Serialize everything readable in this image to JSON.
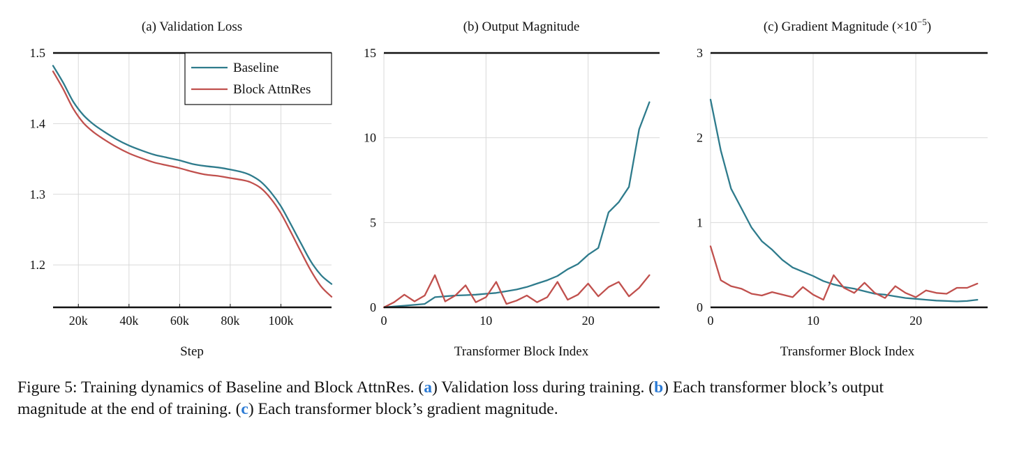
{
  "charts": [
    {
      "id": "loss",
      "title": "(a) Validation Loss",
      "xlabel": "Step",
      "colors": {
        "Baseline": "#2e7b8c",
        "Block AttnRes": "#c0504d"
      },
      "legend": {
        "placement": "top-right",
        "entries": [
          "Baseline",
          "Block AttnRes"
        ]
      }
    },
    {
      "id": "output",
      "title": "(b) Output Magnitude",
      "xlabel": "Transformer Block Index"
    },
    {
      "id": "grad",
      "title": "(c) Gradient Magnitude (×10",
      "title_sup": "−5",
      "title_end": ")",
      "xlabel": "Transformer Block Index"
    }
  ],
  "chart_data": [
    {
      "type": "line",
      "title": "(a) Validation Loss",
      "xlabel": "Step",
      "ylabel": "",
      "xlim": [
        10000,
        120000
      ],
      "ylim": [
        1.14,
        1.5
      ],
      "xticks": [
        20000,
        40000,
        60000,
        80000,
        100000
      ],
      "xtick_labels": [
        "20k",
        "40k",
        "60k",
        "80k",
        "100k"
      ],
      "yticks": [
        1.2,
        1.3,
        1.4,
        1.5
      ],
      "ytick_labels": [
        "1.2",
        "1.3",
        "1.4",
        "1.5"
      ],
      "grid": true,
      "legend": "top-right",
      "x": [
        10000,
        14000,
        18000,
        22000,
        26000,
        30000,
        35000,
        40000,
        45000,
        50000,
        55000,
        60000,
        65000,
        70000,
        75000,
        80000,
        85000,
        88000,
        92000,
        96000,
        100000,
        104000,
        108000,
        112000,
        116000,
        120000
      ],
      "series": [
        {
          "name": "Baseline",
          "color": "#2e7b8c",
          "values": [
            1.482,
            1.458,
            1.431,
            1.412,
            1.399,
            1.389,
            1.378,
            1.369,
            1.362,
            1.356,
            1.352,
            1.348,
            1.343,
            1.34,
            1.338,
            1.335,
            1.331,
            1.327,
            1.318,
            1.303,
            1.283,
            1.257,
            1.23,
            1.204,
            1.185,
            1.173
          ]
        },
        {
          "name": "Block AttnRes",
          "color": "#c0504d",
          "values": [
            1.474,
            1.449,
            1.421,
            1.401,
            1.388,
            1.378,
            1.367,
            1.358,
            1.351,
            1.345,
            1.341,
            1.337,
            1.332,
            1.328,
            1.326,
            1.323,
            1.32,
            1.317,
            1.309,
            1.294,
            1.273,
            1.246,
            1.218,
            1.191,
            1.169,
            1.155
          ]
        }
      ]
    },
    {
      "type": "line",
      "title": "(b) Output Magnitude",
      "xlabel": "Transformer Block Index",
      "ylabel": "",
      "xlim": [
        0,
        27
      ],
      "ylim": [
        0,
        15
      ],
      "xticks": [
        0,
        10,
        20
      ],
      "yticks": [
        0,
        5,
        10,
        15
      ],
      "grid": true,
      "x": [
        0,
        1,
        2,
        3,
        4,
        5,
        6,
        7,
        8,
        9,
        10,
        11,
        12,
        13,
        14,
        15,
        16,
        17,
        18,
        19,
        20,
        21,
        22,
        23,
        24,
        25,
        26
      ],
      "series": [
        {
          "name": "Baseline",
          "color": "#2e7b8c",
          "values": [
            0.0,
            0.05,
            0.1,
            0.15,
            0.2,
            0.6,
            0.65,
            0.7,
            0.72,
            0.75,
            0.8,
            0.85,
            0.95,
            1.05,
            1.2,
            1.4,
            1.6,
            1.85,
            2.25,
            2.55,
            3.1,
            3.5,
            5.6,
            6.2,
            7.1,
            10.5,
            12.1
          ]
        },
        {
          "name": "Block AttnRes",
          "color": "#c0504d",
          "values": [
            0.0,
            0.3,
            0.75,
            0.35,
            0.7,
            1.9,
            0.35,
            0.7,
            1.3,
            0.3,
            0.6,
            1.5,
            0.2,
            0.4,
            0.7,
            0.3,
            0.6,
            1.5,
            0.45,
            0.75,
            1.4,
            0.65,
            1.2,
            1.5,
            0.65,
            1.15,
            1.9
          ]
        }
      ]
    },
    {
      "type": "line",
      "title": "(c) Gradient Magnitude (×10−5)",
      "xlabel": "Transformer Block Index",
      "ylabel": "",
      "xlim": [
        0,
        27
      ],
      "ylim": [
        0,
        3
      ],
      "xticks": [
        0,
        10,
        20
      ],
      "yticks": [
        0,
        1,
        2,
        3
      ],
      "grid": true,
      "x": [
        0,
        1,
        2,
        3,
        4,
        5,
        6,
        7,
        8,
        9,
        10,
        11,
        12,
        13,
        14,
        15,
        16,
        17,
        18,
        19,
        20,
        21,
        22,
        23,
        24,
        25,
        26
      ],
      "series": [
        {
          "name": "Baseline",
          "color": "#2e7b8c",
          "values": [
            2.45,
            1.85,
            1.4,
            1.17,
            0.94,
            0.78,
            0.68,
            0.56,
            0.47,
            0.42,
            0.37,
            0.31,
            0.27,
            0.24,
            0.22,
            0.19,
            0.16,
            0.15,
            0.13,
            0.11,
            0.1,
            0.09,
            0.08,
            0.075,
            0.07,
            0.075,
            0.09
          ]
        },
        {
          "name": "Block AttnRes",
          "color": "#c0504d",
          "values": [
            0.72,
            0.32,
            0.25,
            0.22,
            0.16,
            0.14,
            0.18,
            0.15,
            0.12,
            0.24,
            0.15,
            0.09,
            0.38,
            0.23,
            0.17,
            0.29,
            0.17,
            0.11,
            0.25,
            0.17,
            0.12,
            0.2,
            0.17,
            0.16,
            0.23,
            0.23,
            0.28
          ]
        }
      ]
    }
  ],
  "caption": {
    "lead": "Figure 5: Training dynamics of Baseline and Block AttnRes. (",
    "ref_a": "a",
    "part_a": ") Validation loss during training. (",
    "ref_b": "b",
    "part_b": ") Each transformer block’s output",
    "line2_lead": "magnitude at the end of training. (",
    "ref_c": "c",
    "part_c": ") Each transformer block’s gradient magnitude."
  }
}
